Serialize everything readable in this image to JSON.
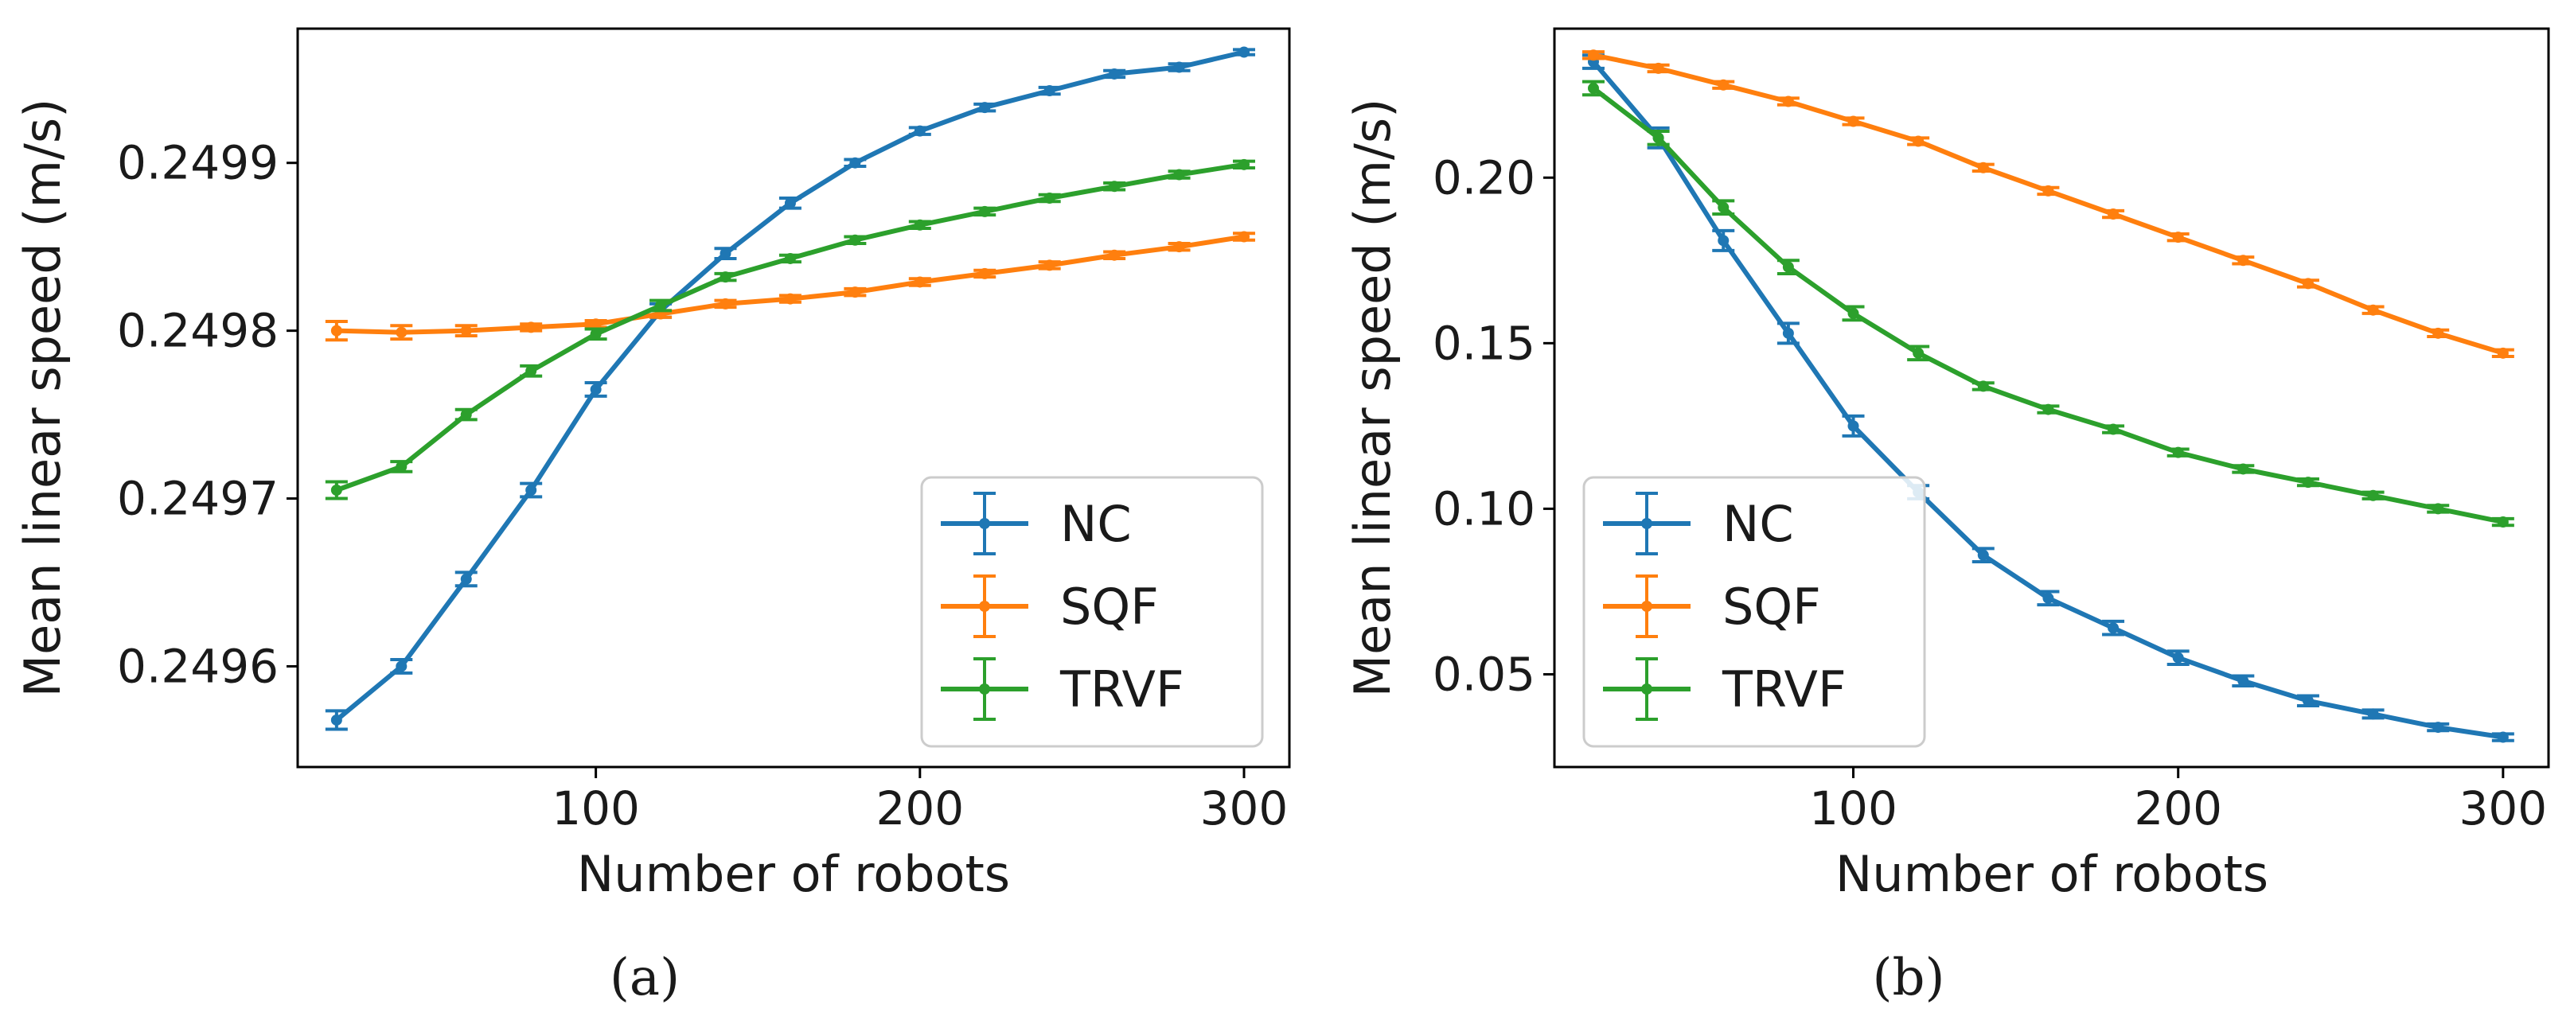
{
  "chart_data": [
    {
      "type": "line",
      "panel_label": "(a)",
      "xlabel": "Number of robots",
      "ylabel": "Mean linear speed (m/s)",
      "xlim": [
        8,
        314
      ],
      "ylim": [
        0.24954,
        0.24998
      ],
      "xticks": [
        100,
        200,
        300
      ],
      "xtick_labels": [
        "100",
        "200",
        "300"
      ],
      "yticks": [
        0.2496,
        0.2497,
        0.2498,
        0.2499
      ],
      "ytick_labels": [
        "0.2496",
        "0.2497",
        "0.2498",
        "0.2499"
      ],
      "legend_location": "lower-right",
      "x": [
        20,
        40,
        60,
        80,
        100,
        120,
        140,
        160,
        180,
        200,
        220,
        240,
        260,
        280,
        300
      ],
      "series": [
        {
          "name": "NC",
          "color": "#1f77b4",
          "values": [
            0.249568,
            0.2496,
            0.249652,
            0.249705,
            0.249765,
            0.249812,
            0.249846,
            0.249876,
            0.2499,
            0.249919,
            0.249933,
            0.249943,
            0.249953,
            0.249957,
            0.249966
          ],
          "errors": [
            5.5e-06,
            4e-06,
            4e-06,
            4e-06,
            4e-06,
            4e-06,
            3e-06,
            3e-06,
            2e-06,
            2e-06,
            2e-06,
            2e-06,
            2e-06,
            2e-06,
            1.5e-06
          ]
        },
        {
          "name": "SQF",
          "color": "#ff7f0e",
          "values": [
            0.2498,
            0.249799,
            0.2498,
            0.249802,
            0.249804,
            0.24981,
            0.249816,
            0.249819,
            0.249823,
            0.249829,
            0.249834,
            0.249839,
            0.249845,
            0.24985,
            0.249856
          ],
          "errors": [
            5.5e-06,
            4e-06,
            3e-06,
            2e-06,
            2e-06,
            2e-06,
            2e-06,
            2e-06,
            2e-06,
            2e-06,
            2e-06,
            2e-06,
            2e-06,
            2e-06,
            2e-06
          ]
        },
        {
          "name": "TRVF",
          "color": "#2ca02c",
          "values": [
            0.249705,
            0.249719,
            0.24975,
            0.249776,
            0.249798,
            0.249815,
            0.249832,
            0.249843,
            0.249854,
            0.249863,
            0.249871,
            0.249879,
            0.249886,
            0.249893,
            0.249899
          ],
          "errors": [
            5e-06,
            3e-06,
            3e-06,
            3e-06,
            3e-06,
            3e-06,
            2e-06,
            2e-06,
            2e-06,
            2e-06,
            2e-06,
            2e-06,
            2e-06,
            2e-06,
            2e-06
          ]
        }
      ]
    },
    {
      "type": "line",
      "panel_label": "(b)",
      "xlabel": "Number of robots",
      "ylabel": "Mean linear speed (m/s)",
      "xlim": [
        8,
        314
      ],
      "ylim": [
        0.022,
        0.245
      ],
      "xticks": [
        100,
        200,
        300
      ],
      "xtick_labels": [
        "100",
        "200",
        "300"
      ],
      "yticks": [
        0.05,
        0.1,
        0.15,
        0.2
      ],
      "ytick_labels": [
        "0.05",
        "0.10",
        "0.15",
        "0.20"
      ],
      "legend_location": "lower-left",
      "x": [
        20,
        40,
        60,
        80,
        100,
        120,
        140,
        160,
        180,
        200,
        220,
        240,
        260,
        280,
        300
      ],
      "series": [
        {
          "name": "NC",
          "color": "#1f77b4",
          "values": [
            0.235,
            0.212,
            0.181,
            0.153,
            0.125,
            0.105,
            0.086,
            0.073,
            0.064,
            0.055,
            0.048,
            0.042,
            0.038,
            0.034,
            0.031
          ],
          "errors": [
            0.002,
            0.003,
            0.003,
            0.003,
            0.003,
            0.002,
            0.002,
            0.002,
            0.002,
            0.002,
            0.0015,
            0.0015,
            0.0012,
            0.001,
            0.001
          ]
        },
        {
          "name": "SQF",
          "color": "#ff7f0e",
          "values": [
            0.237,
            0.233,
            0.228,
            0.223,
            0.217,
            0.211,
            0.203,
            0.196,
            0.189,
            0.182,
            0.175,
            0.168,
            0.16,
            0.153,
            0.147
          ],
          "errors": [
            0.001,
            0.001,
            0.001,
            0.001,
            0.001,
            0.001,
            0.001,
            0.001,
            0.001,
            0.001,
            0.001,
            0.001,
            0.001,
            0.001,
            0.001
          ]
        },
        {
          "name": "TRVF",
          "color": "#2ca02c",
          "values": [
            0.227,
            0.212,
            0.191,
            0.173,
            0.159,
            0.147,
            0.137,
            0.13,
            0.124,
            0.117,
            0.112,
            0.108,
            0.104,
            0.1,
            0.096
          ],
          "errors": [
            0.002,
            0.002,
            0.002,
            0.002,
            0.002,
            0.002,
            0.001,
            0.001,
            0.001,
            0.001,
            0.001,
            0.001,
            0.001,
            0.001,
            0.001
          ]
        }
      ]
    }
  ]
}
